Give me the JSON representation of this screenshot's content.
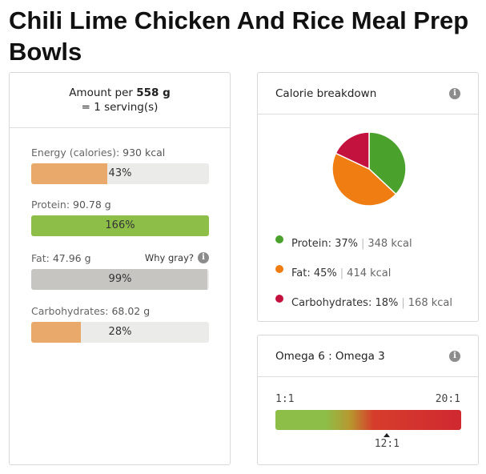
{
  "title": "Chili Lime Chicken And Rice Meal Prep Bowls",
  "serving": {
    "line1_prefix": "Amount per",
    "amount": "558 g",
    "line2": "= 1 serving(s)"
  },
  "nutrients": [
    {
      "label": "Energy (calories):",
      "value": "930 kcal",
      "percent_text": "43%",
      "fill_fraction": 0.43,
      "color": "#e8a96b"
    },
    {
      "label": "Protein:",
      "value": "90.78 g",
      "percent_text": "166%",
      "fill_fraction": 1.0,
      "color": "#8cbe48"
    },
    {
      "label": "Fat:",
      "value": "47.96 g",
      "percent_text": "99%",
      "fill_fraction": 0.99,
      "color": "#c6c5c1"
    },
    {
      "label": "Carbohydrates:",
      "value": "68.02 g",
      "percent_text": "28%",
      "fill_fraction": 0.28,
      "color": "#e8a96b"
    }
  ],
  "why_gray": "Why gray?",
  "info_icon": "info-icon",
  "calorie_card": {
    "title": "Calorie breakdown",
    "slices": [
      {
        "name": "Protein:",
        "percent": "37%",
        "kcal": "348 kcal",
        "fraction": 0.37,
        "color": "#4aa22c"
      },
      {
        "name": "Fat:",
        "percent": "45%",
        "kcal": "414 kcal",
        "fraction": 0.45,
        "color": "#ef7d12"
      },
      {
        "name": "Carbohydrates:",
        "percent": "18%",
        "kcal": "168 kcal",
        "fraction": 0.18,
        "color": "#c4123e"
      }
    ]
  },
  "omega_card": {
    "title": "Omega 6 : Omega 3",
    "min_label": "1:1",
    "max_label": "20:1",
    "value_label": "12:1",
    "value_position": 0.6
  }
}
